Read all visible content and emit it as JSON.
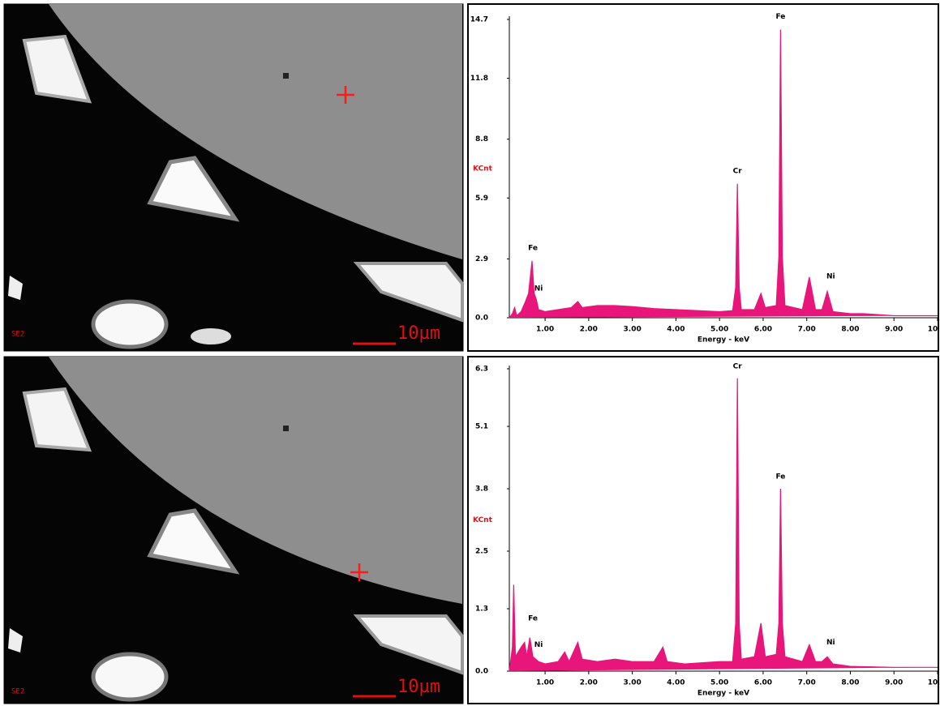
{
  "images": [
    {
      "detector": "SE2",
      "scale": "10µm"
    },
    {
      "detector": "SE2",
      "scale": "10µm"
    }
  ],
  "chart_data": [
    {
      "type": "area",
      "color": "#e8157a",
      "y_label": "KCnt",
      "x_label": "Energy - keV",
      "xlim": [
        0.18,
        10.0
      ],
      "ylim": [
        0,
        14.7
      ],
      "xticks": [
        {
          "value": 1,
          "label": "1.00"
        },
        {
          "value": 2,
          "label": "2.00"
        },
        {
          "value": 3,
          "label": "3.00"
        },
        {
          "value": 4,
          "label": "4.00"
        },
        {
          "value": 5,
          "label": "5.00"
        },
        {
          "value": 6,
          "label": "6.00"
        },
        {
          "value": 7,
          "label": "7.00"
        },
        {
          "value": 8,
          "label": "8.00"
        },
        {
          "value": 9,
          "label": "9.00"
        },
        {
          "value": 10,
          "label": "10"
        }
      ],
      "yticks": [
        {
          "value": 0,
          "label": "0.0"
        },
        2.9,
        5.9,
        8.8,
        11.8,
        14.7
      ],
      "x": [
        0.18,
        0.25,
        0.3,
        0.35,
        0.45,
        0.55,
        0.62,
        0.7,
        0.75,
        0.8,
        0.85,
        1.0,
        1.3,
        1.6,
        1.75,
        1.85,
        2.2,
        2.6,
        3.0,
        3.5,
        4.0,
        4.5,
        5.0,
        5.3,
        5.37,
        5.41,
        5.45,
        5.5,
        5.8,
        5.95,
        6.05,
        6.3,
        6.36,
        6.4,
        6.44,
        6.5,
        6.9,
        7.06,
        7.2,
        7.35,
        7.47,
        7.6,
        8.0,
        8.3,
        9.0,
        10.0
      ],
      "values": [
        0,
        0.2,
        0.5,
        0.1,
        0.3,
        0.8,
        1.2,
        2.8,
        1.2,
        0.9,
        0.4,
        0.3,
        0.4,
        0.5,
        0.8,
        0.5,
        0.6,
        0.6,
        0.55,
        0.45,
        0.4,
        0.35,
        0.3,
        0.35,
        1.5,
        6.6,
        1.5,
        0.4,
        0.4,
        1.2,
        0.5,
        0.6,
        3.0,
        14.2,
        3.0,
        0.6,
        0.4,
        2.0,
        0.4,
        0.4,
        1.3,
        0.3,
        0.2,
        0.2,
        0.1,
        0.1
      ],
      "annotations": [
        {
          "text": "Fe",
          "x": 0.72,
          "y": 3.2
        },
        {
          "text": "Ni",
          "x": 0.85,
          "y": 1.2
        },
        {
          "text": "Cr",
          "x": 5.41,
          "y": 7.0
        },
        {
          "text": "Fe",
          "x": 6.4,
          "y": 14.6
        },
        {
          "text": "Ni",
          "x": 7.55,
          "y": 1.8
        }
      ]
    },
    {
      "type": "area",
      "color": "#e8157a",
      "y_label": "KCnt",
      "x_label": "Energy - keV",
      "xlim": [
        0.18,
        10.0
      ],
      "ylim": [
        0,
        6.3
      ],
      "xticks": [
        {
          "value": 1,
          "label": "1.00"
        },
        {
          "value": 2,
          "label": "2.00"
        },
        {
          "value": 3,
          "label": "3.00"
        },
        {
          "value": 4,
          "label": "4.00"
        },
        {
          "value": 5,
          "label": "5.00"
        },
        {
          "value": 6,
          "label": "6.00"
        },
        {
          "value": 7,
          "label": "7.00"
        },
        {
          "value": 8,
          "label": "8.00"
        },
        {
          "value": 9,
          "label": "9.00"
        },
        {
          "value": 10,
          "label": "10"
        }
      ],
      "yticks": [
        {
          "value": 0,
          "label": "0.0"
        },
        1.3,
        2.5,
        3.8,
        5.1,
        6.3
      ],
      "x": [
        0.18,
        0.25,
        0.28,
        0.32,
        0.45,
        0.53,
        0.58,
        0.65,
        0.72,
        0.85,
        1.0,
        1.3,
        1.45,
        1.55,
        1.75,
        1.85,
        2.2,
        2.6,
        3.0,
        3.5,
        3.7,
        3.8,
        4.2,
        5.0,
        5.3,
        5.37,
        5.41,
        5.45,
        5.5,
        5.8,
        5.95,
        6.05,
        6.3,
        6.36,
        6.4,
        6.44,
        6.5,
        6.9,
        7.06,
        7.2,
        7.35,
        7.47,
        7.6,
        8.0,
        9.0,
        10.0
      ],
      "values": [
        0,
        0.5,
        1.8,
        0.3,
        0.5,
        0.6,
        0.3,
        0.7,
        0.3,
        0.2,
        0.15,
        0.2,
        0.4,
        0.2,
        0.6,
        0.25,
        0.2,
        0.25,
        0.2,
        0.2,
        0.5,
        0.2,
        0.15,
        0.2,
        0.2,
        1.0,
        6.1,
        1.0,
        0.25,
        0.3,
        1.0,
        0.3,
        0.35,
        1.0,
        3.8,
        1.0,
        0.3,
        0.2,
        0.55,
        0.2,
        0.2,
        0.3,
        0.15,
        0.1,
        0.08,
        0.08
      ],
      "annotations": [
        {
          "text": "Cr",
          "x": 5.41,
          "y": 6.25
        },
        {
          "text": "Fe",
          "x": 6.4,
          "y": 3.95
        },
        {
          "text": "Fe",
          "x": 0.72,
          "y": 1.0
        },
        {
          "text": "Ni",
          "x": 0.85,
          "y": 0.45
        },
        {
          "text": "Ni",
          "x": 7.55,
          "y": 0.5
        }
      ]
    }
  ]
}
